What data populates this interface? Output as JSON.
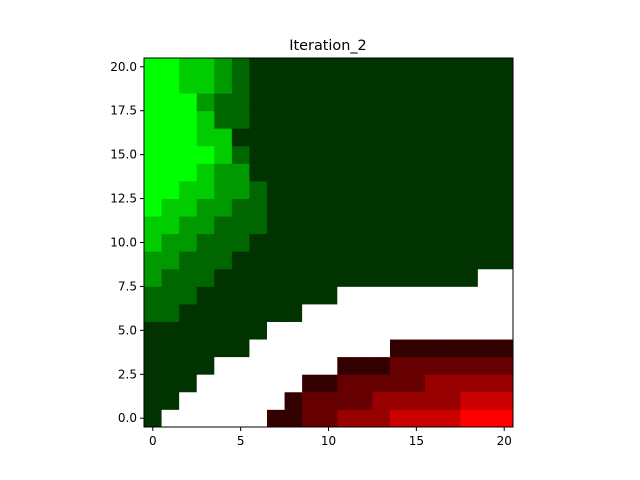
{
  "chart_data": {
    "type": "heatmap",
    "title": "Iteration_2",
    "xlabel": "",
    "ylabel": "",
    "xlim": [
      -0.5,
      20.5
    ],
    "ylim": [
      -0.5,
      20.5
    ],
    "x_ticks": [
      0,
      5,
      10,
      15,
      20
    ],
    "x_tick_labels": [
      "0",
      "5",
      "10",
      "15",
      "20"
    ],
    "y_ticks": [
      0.0,
      2.5,
      5.0,
      7.5,
      10.0,
      12.5,
      15.0,
      17.5,
      20.0
    ],
    "y_tick_labels": [
      "0.0",
      "2.5",
      "5.0",
      "7.5",
      "10.0",
      "12.5",
      "15.0",
      "17.5",
      "20.0"
    ],
    "grid": false,
    "origin": "lower",
    "value_encoding": "positive values shade green, negative values shade red, 0 shown white; magnitude = brightness",
    "colors": {
      "positive": "#00ff00",
      "negative": "#ff0000",
      "zero": "#ffffff"
    },
    "rows_bottom_to_top": [
      "1,0,0,0,0,0,0,-1,-1,-2,-2,-3,-3,-3,-4,-4,-4,-4,-5,-5,-5",
      "1,1,0,0,0,0,0,0,-1,-2,-2,-2,-2,-3,-3,-3,-3,-3,-4,-4,-4",
      "1,1,1,0,0,0,0,0,0,-1,-1,-2,-2,-2,-2,-2,-3,-3,-3,-3,-3",
      "1,1,1,1,0,0,0,0,0,0,0,-1,-1,-1,-2,-2,-2,-2,-2,-2,-2",
      "1,1,1,1,1,1,0,0,0,0,0,0,0,0,-1,-1,-1,-1,-1,-1,-1",
      "1,1,1,1,1,1,1,0,0,0,0,0,0,0,0,0,0,0,0,0,0",
      "2,2,1,1,1,1,1,1,1,0,0,0,0,0,0,0,0,0,0,0,0",
      "2,2,2,1,1,1,1,1,1,1,1,0,0,0,0,0,0,0,0,0,0",
      "3,2,2,2,1,1,1,1,1,1,1,1,1,1,1,1,1,1,1,0,0",
      "3,3,2,2,2,1,1,1,1,1,1,1,1,1,1,1,1,1,1,1,1",
      "4,3,3,2,2,2,1,1,1,1,1,1,1,1,1,1,1,1,1,1,1",
      "4,4,3,3,2,2,2,1,1,1,1,1,1,1,1,1,1,1,1,1,1",
      "5,4,4,3,3,2,2,1,1,1,1,1,1,1,1,1,1,1,1,1,1",
      "5,5,4,4,3,3,2,1,1,1,1,1,1,1,1,1,1,1,1,1,1",
      "5,5,5,4,3,3,1,1,1,1,1,1,1,1,1,1,1,1,1,1,1",
      "5,5,5,5,4,2,1,1,1,1,1,1,1,1,1,1,1,1,1,1,1",
      "5,5,5,4,4,1,1,1,1,1,1,1,1,1,1,1,1,1,1,1,1",
      "5,5,5,4,2,2,1,1,1,1,1,1,1,1,1,1,1,1,1,1,1",
      "5,5,5,3,2,2,1,1,1,1,1,1,1,1,1,1,1,1,1,1,1",
      "5,5,4,4,3,2,1,1,1,1,1,1,1,1,1,1,1,1,1,1,1",
      "5,5,4,4,3,2,1,1,1,1,1,1,1,1,1,1,1,1,1,1,1"
    ],
    "value_max": 5
  }
}
